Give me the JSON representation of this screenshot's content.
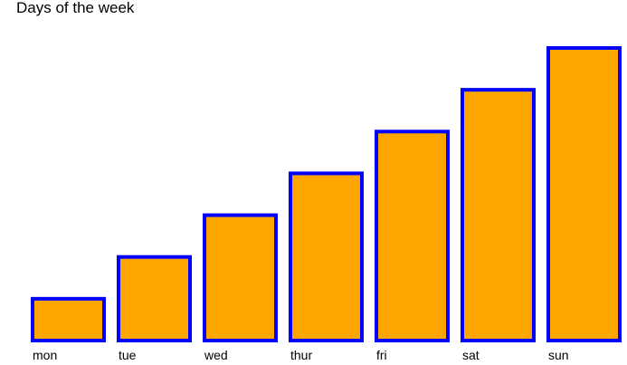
{
  "chart_data": {
    "type": "bar",
    "title": "Days of the week",
    "xlabel": "",
    "ylabel": "",
    "categories": [
      "mon",
      "tue",
      "wed",
      "thur",
      "fri",
      "sat",
      "sun"
    ],
    "values": [
      1,
      2,
      3,
      4,
      5,
      6,
      7
    ],
    "ylim": [
      0,
      7
    ],
    "grid": false,
    "legend": "none",
    "colors": {
      "bar_fill": "#FFA500",
      "bar_edge": "#0000FF",
      "text": "#000000",
      "background": "#FFFFFF"
    }
  }
}
